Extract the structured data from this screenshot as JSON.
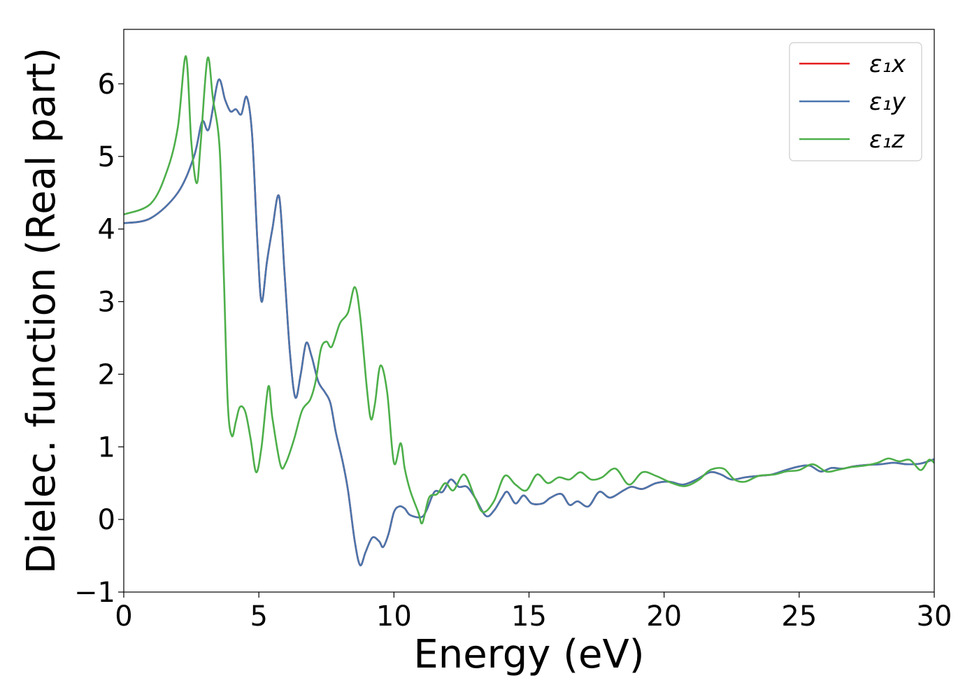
{
  "chart_data": {
    "type": "line",
    "xlabel": "Energy (eV)",
    "ylabel": "Dielec. function (Real part)",
    "xlim": [
      0,
      30
    ],
    "ylim": [
      -1,
      6.75
    ],
    "x_ticks": [
      0,
      5,
      10,
      15,
      20,
      25,
      30
    ],
    "y_ticks": [
      -1,
      0,
      1,
      2,
      3,
      4,
      5,
      6
    ],
    "x_tick_labels": [
      "0",
      "5",
      "10",
      "15",
      "20",
      "25",
      "30"
    ],
    "y_tick_labels": [
      "−1",
      "0",
      "1",
      "2",
      "3",
      "4",
      "5",
      "6"
    ],
    "grid": false,
    "legend_position": "top-right",
    "series": [
      {
        "name": "ε₁x",
        "color": "#e41a1c",
        "points": [
          [
            0,
            4.08
          ],
          [
            1.0,
            4.15
          ],
          [
            2.0,
            4.5
          ],
          [
            2.6,
            5.0
          ],
          [
            2.9,
            5.48
          ],
          [
            3.15,
            5.38
          ],
          [
            3.5,
            6.05
          ],
          [
            3.75,
            5.78
          ],
          [
            3.95,
            5.62
          ],
          [
            4.15,
            5.65
          ],
          [
            4.35,
            5.58
          ],
          [
            4.55,
            5.82
          ],
          [
            4.75,
            5.3
          ],
          [
            4.95,
            3.8
          ],
          [
            5.1,
            3.0
          ],
          [
            5.3,
            3.55
          ],
          [
            5.5,
            4.0
          ],
          [
            5.75,
            4.45
          ],
          [
            5.95,
            3.4
          ],
          [
            6.15,
            2.3
          ],
          [
            6.35,
            1.68
          ],
          [
            6.55,
            2.0
          ],
          [
            6.75,
            2.43
          ],
          [
            6.95,
            2.25
          ],
          [
            7.2,
            1.9
          ],
          [
            7.45,
            1.75
          ],
          [
            7.65,
            1.6
          ],
          [
            7.85,
            1.2
          ],
          [
            8.1,
            0.8
          ],
          [
            8.3,
            0.4
          ],
          [
            8.55,
            -0.3
          ],
          [
            8.75,
            -0.63
          ],
          [
            8.95,
            -0.45
          ],
          [
            9.2,
            -0.25
          ],
          [
            9.45,
            -0.3
          ],
          [
            9.6,
            -0.38
          ],
          [
            9.8,
            -0.2
          ],
          [
            10.0,
            0.1
          ],
          [
            10.2,
            0.18
          ],
          [
            10.4,
            0.15
          ],
          [
            10.6,
            0.06
          ],
          [
            11.0,
            0.03
          ],
          [
            11.2,
            0.12
          ],
          [
            11.5,
            0.38
          ],
          [
            11.8,
            0.38
          ],
          [
            12.1,
            0.55
          ],
          [
            12.4,
            0.45
          ],
          [
            12.7,
            0.45
          ],
          [
            13.0,
            0.3
          ],
          [
            13.4,
            0.05
          ],
          [
            13.7,
            0.12
          ],
          [
            14.0,
            0.3
          ],
          [
            14.2,
            0.38
          ],
          [
            14.5,
            0.22
          ],
          [
            14.8,
            0.33
          ],
          [
            15.1,
            0.22
          ],
          [
            15.5,
            0.22
          ],
          [
            15.8,
            0.3
          ],
          [
            16.2,
            0.35
          ],
          [
            16.5,
            0.2
          ],
          [
            16.8,
            0.25
          ],
          [
            17.2,
            0.18
          ],
          [
            17.6,
            0.38
          ],
          [
            18.0,
            0.3
          ],
          [
            18.5,
            0.4
          ],
          [
            18.8,
            0.45
          ],
          [
            19.2,
            0.42
          ],
          [
            19.7,
            0.5
          ],
          [
            20.2,
            0.52
          ],
          [
            20.7,
            0.48
          ],
          [
            21.2,
            0.55
          ],
          [
            21.7,
            0.65
          ],
          [
            22.1,
            0.62
          ],
          [
            22.5,
            0.55
          ],
          [
            23.0,
            0.58
          ],
          [
            23.5,
            0.6
          ],
          [
            24.0,
            0.62
          ],
          [
            24.5,
            0.68
          ],
          [
            25.0,
            0.73
          ],
          [
            25.4,
            0.74
          ],
          [
            25.8,
            0.66
          ],
          [
            26.2,
            0.71
          ],
          [
            26.6,
            0.7
          ],
          [
            27.0,
            0.73
          ],
          [
            27.5,
            0.75
          ],
          [
            28.0,
            0.76
          ],
          [
            28.5,
            0.78
          ],
          [
            29.0,
            0.76
          ],
          [
            29.5,
            0.77
          ],
          [
            30.0,
            0.83
          ]
        ]
      },
      {
        "name": "ε₁y",
        "color": "#4a76ad",
        "points": [
          [
            0,
            4.08
          ],
          [
            1.0,
            4.15
          ],
          [
            2.0,
            4.5
          ],
          [
            2.6,
            5.0
          ],
          [
            2.9,
            5.48
          ],
          [
            3.15,
            5.38
          ],
          [
            3.5,
            6.05
          ],
          [
            3.75,
            5.78
          ],
          [
            3.95,
            5.62
          ],
          [
            4.15,
            5.65
          ],
          [
            4.35,
            5.58
          ],
          [
            4.55,
            5.82
          ],
          [
            4.75,
            5.3
          ],
          [
            4.95,
            3.8
          ],
          [
            5.1,
            3.0
          ],
          [
            5.3,
            3.55
          ],
          [
            5.5,
            4.0
          ],
          [
            5.75,
            4.45
          ],
          [
            5.95,
            3.4
          ],
          [
            6.15,
            2.3
          ],
          [
            6.35,
            1.68
          ],
          [
            6.55,
            2.0
          ],
          [
            6.75,
            2.43
          ],
          [
            6.95,
            2.25
          ],
          [
            7.2,
            1.9
          ],
          [
            7.45,
            1.75
          ],
          [
            7.65,
            1.6
          ],
          [
            7.85,
            1.2
          ],
          [
            8.1,
            0.8
          ],
          [
            8.3,
            0.4
          ],
          [
            8.55,
            -0.3
          ],
          [
            8.75,
            -0.63
          ],
          [
            8.95,
            -0.45
          ],
          [
            9.2,
            -0.25
          ],
          [
            9.45,
            -0.3
          ],
          [
            9.6,
            -0.38
          ],
          [
            9.8,
            -0.2
          ],
          [
            10.0,
            0.1
          ],
          [
            10.2,
            0.18
          ],
          [
            10.4,
            0.15
          ],
          [
            10.6,
            0.06
          ],
          [
            11.0,
            0.03
          ],
          [
            11.2,
            0.12
          ],
          [
            11.5,
            0.38
          ],
          [
            11.8,
            0.38
          ],
          [
            12.1,
            0.55
          ],
          [
            12.4,
            0.45
          ],
          [
            12.7,
            0.45
          ],
          [
            13.0,
            0.3
          ],
          [
            13.4,
            0.05
          ],
          [
            13.7,
            0.12
          ],
          [
            14.0,
            0.3
          ],
          [
            14.2,
            0.38
          ],
          [
            14.5,
            0.22
          ],
          [
            14.8,
            0.33
          ],
          [
            15.1,
            0.22
          ],
          [
            15.5,
            0.22
          ],
          [
            15.8,
            0.3
          ],
          [
            16.2,
            0.35
          ],
          [
            16.5,
            0.2
          ],
          [
            16.8,
            0.25
          ],
          [
            17.2,
            0.18
          ],
          [
            17.6,
            0.38
          ],
          [
            18.0,
            0.3
          ],
          [
            18.5,
            0.4
          ],
          [
            18.8,
            0.45
          ],
          [
            19.2,
            0.42
          ],
          [
            19.7,
            0.5
          ],
          [
            20.2,
            0.52
          ],
          [
            20.7,
            0.48
          ],
          [
            21.2,
            0.55
          ],
          [
            21.7,
            0.65
          ],
          [
            22.1,
            0.62
          ],
          [
            22.5,
            0.55
          ],
          [
            23.0,
            0.58
          ],
          [
            23.5,
            0.6
          ],
          [
            24.0,
            0.62
          ],
          [
            24.5,
            0.68
          ],
          [
            25.0,
            0.73
          ],
          [
            25.4,
            0.74
          ],
          [
            25.8,
            0.66
          ],
          [
            26.2,
            0.71
          ],
          [
            26.6,
            0.7
          ],
          [
            27.0,
            0.73
          ],
          [
            27.5,
            0.75
          ],
          [
            28.0,
            0.76
          ],
          [
            28.5,
            0.78
          ],
          [
            29.0,
            0.76
          ],
          [
            29.5,
            0.77
          ],
          [
            30.0,
            0.83
          ]
        ]
      },
      {
        "name": "ε₁z",
        "color": "#4daf4a",
        "points": [
          [
            0,
            4.2
          ],
          [
            1.0,
            4.35
          ],
          [
            1.6,
            4.8
          ],
          [
            2.0,
            5.4
          ],
          [
            2.3,
            6.38
          ],
          [
            2.5,
            5.2
          ],
          [
            2.7,
            4.63
          ],
          [
            2.85,
            5.2
          ],
          [
            3.1,
            6.35
          ],
          [
            3.3,
            5.8
          ],
          [
            3.55,
            5.1
          ],
          [
            3.7,
            3.4
          ],
          [
            3.85,
            1.6
          ],
          [
            4.0,
            1.15
          ],
          [
            4.15,
            1.35
          ],
          [
            4.3,
            1.55
          ],
          [
            4.5,
            1.48
          ],
          [
            4.7,
            1.1
          ],
          [
            4.9,
            0.65
          ],
          [
            5.1,
            1.0
          ],
          [
            5.35,
            1.83
          ],
          [
            5.5,
            1.4
          ],
          [
            5.8,
            0.75
          ],
          [
            6.0,
            0.78
          ],
          [
            6.3,
            1.1
          ],
          [
            6.6,
            1.5
          ],
          [
            6.9,
            1.65
          ],
          [
            7.1,
            1.9
          ],
          [
            7.3,
            2.35
          ],
          [
            7.5,
            2.45
          ],
          [
            7.7,
            2.38
          ],
          [
            8.0,
            2.7
          ],
          [
            8.3,
            2.85
          ],
          [
            8.55,
            3.2
          ],
          [
            8.75,
            2.8
          ],
          [
            9.0,
            1.8
          ],
          [
            9.15,
            1.38
          ],
          [
            9.3,
            1.6
          ],
          [
            9.5,
            2.12
          ],
          [
            9.75,
            1.75
          ],
          [
            10.0,
            0.78
          ],
          [
            10.25,
            1.05
          ],
          [
            10.4,
            0.7
          ],
          [
            10.6,
            0.4
          ],
          [
            10.9,
            0.1
          ],
          [
            11.05,
            -0.05
          ],
          [
            11.3,
            0.3
          ],
          [
            11.6,
            0.35
          ],
          [
            11.9,
            0.5
          ],
          [
            12.2,
            0.4
          ],
          [
            12.6,
            0.62
          ],
          [
            13.0,
            0.3
          ],
          [
            13.3,
            0.1
          ],
          [
            13.7,
            0.25
          ],
          [
            14.1,
            0.6
          ],
          [
            14.5,
            0.48
          ],
          [
            14.9,
            0.4
          ],
          [
            15.3,
            0.62
          ],
          [
            15.7,
            0.5
          ],
          [
            16.1,
            0.58
          ],
          [
            16.5,
            0.55
          ],
          [
            16.9,
            0.65
          ],
          [
            17.3,
            0.55
          ],
          [
            17.7,
            0.58
          ],
          [
            18.2,
            0.7
          ],
          [
            18.7,
            0.48
          ],
          [
            19.2,
            0.65
          ],
          [
            19.7,
            0.6
          ],
          [
            20.3,
            0.5
          ],
          [
            20.8,
            0.46
          ],
          [
            21.3,
            0.55
          ],
          [
            21.7,
            0.68
          ],
          [
            22.2,
            0.7
          ],
          [
            22.6,
            0.55
          ],
          [
            23.0,
            0.52
          ],
          [
            23.5,
            0.6
          ],
          [
            24.1,
            0.62
          ],
          [
            24.5,
            0.66
          ],
          [
            25.0,
            0.68
          ],
          [
            25.5,
            0.76
          ],
          [
            26.0,
            0.66
          ],
          [
            26.4,
            0.68
          ],
          [
            26.9,
            0.72
          ],
          [
            27.4,
            0.74
          ],
          [
            27.9,
            0.78
          ],
          [
            28.3,
            0.84
          ],
          [
            28.7,
            0.8
          ],
          [
            29.1,
            0.82
          ],
          [
            29.5,
            0.68
          ],
          [
            29.8,
            0.82
          ],
          [
            30.0,
            0.78
          ]
        ]
      }
    ]
  }
}
